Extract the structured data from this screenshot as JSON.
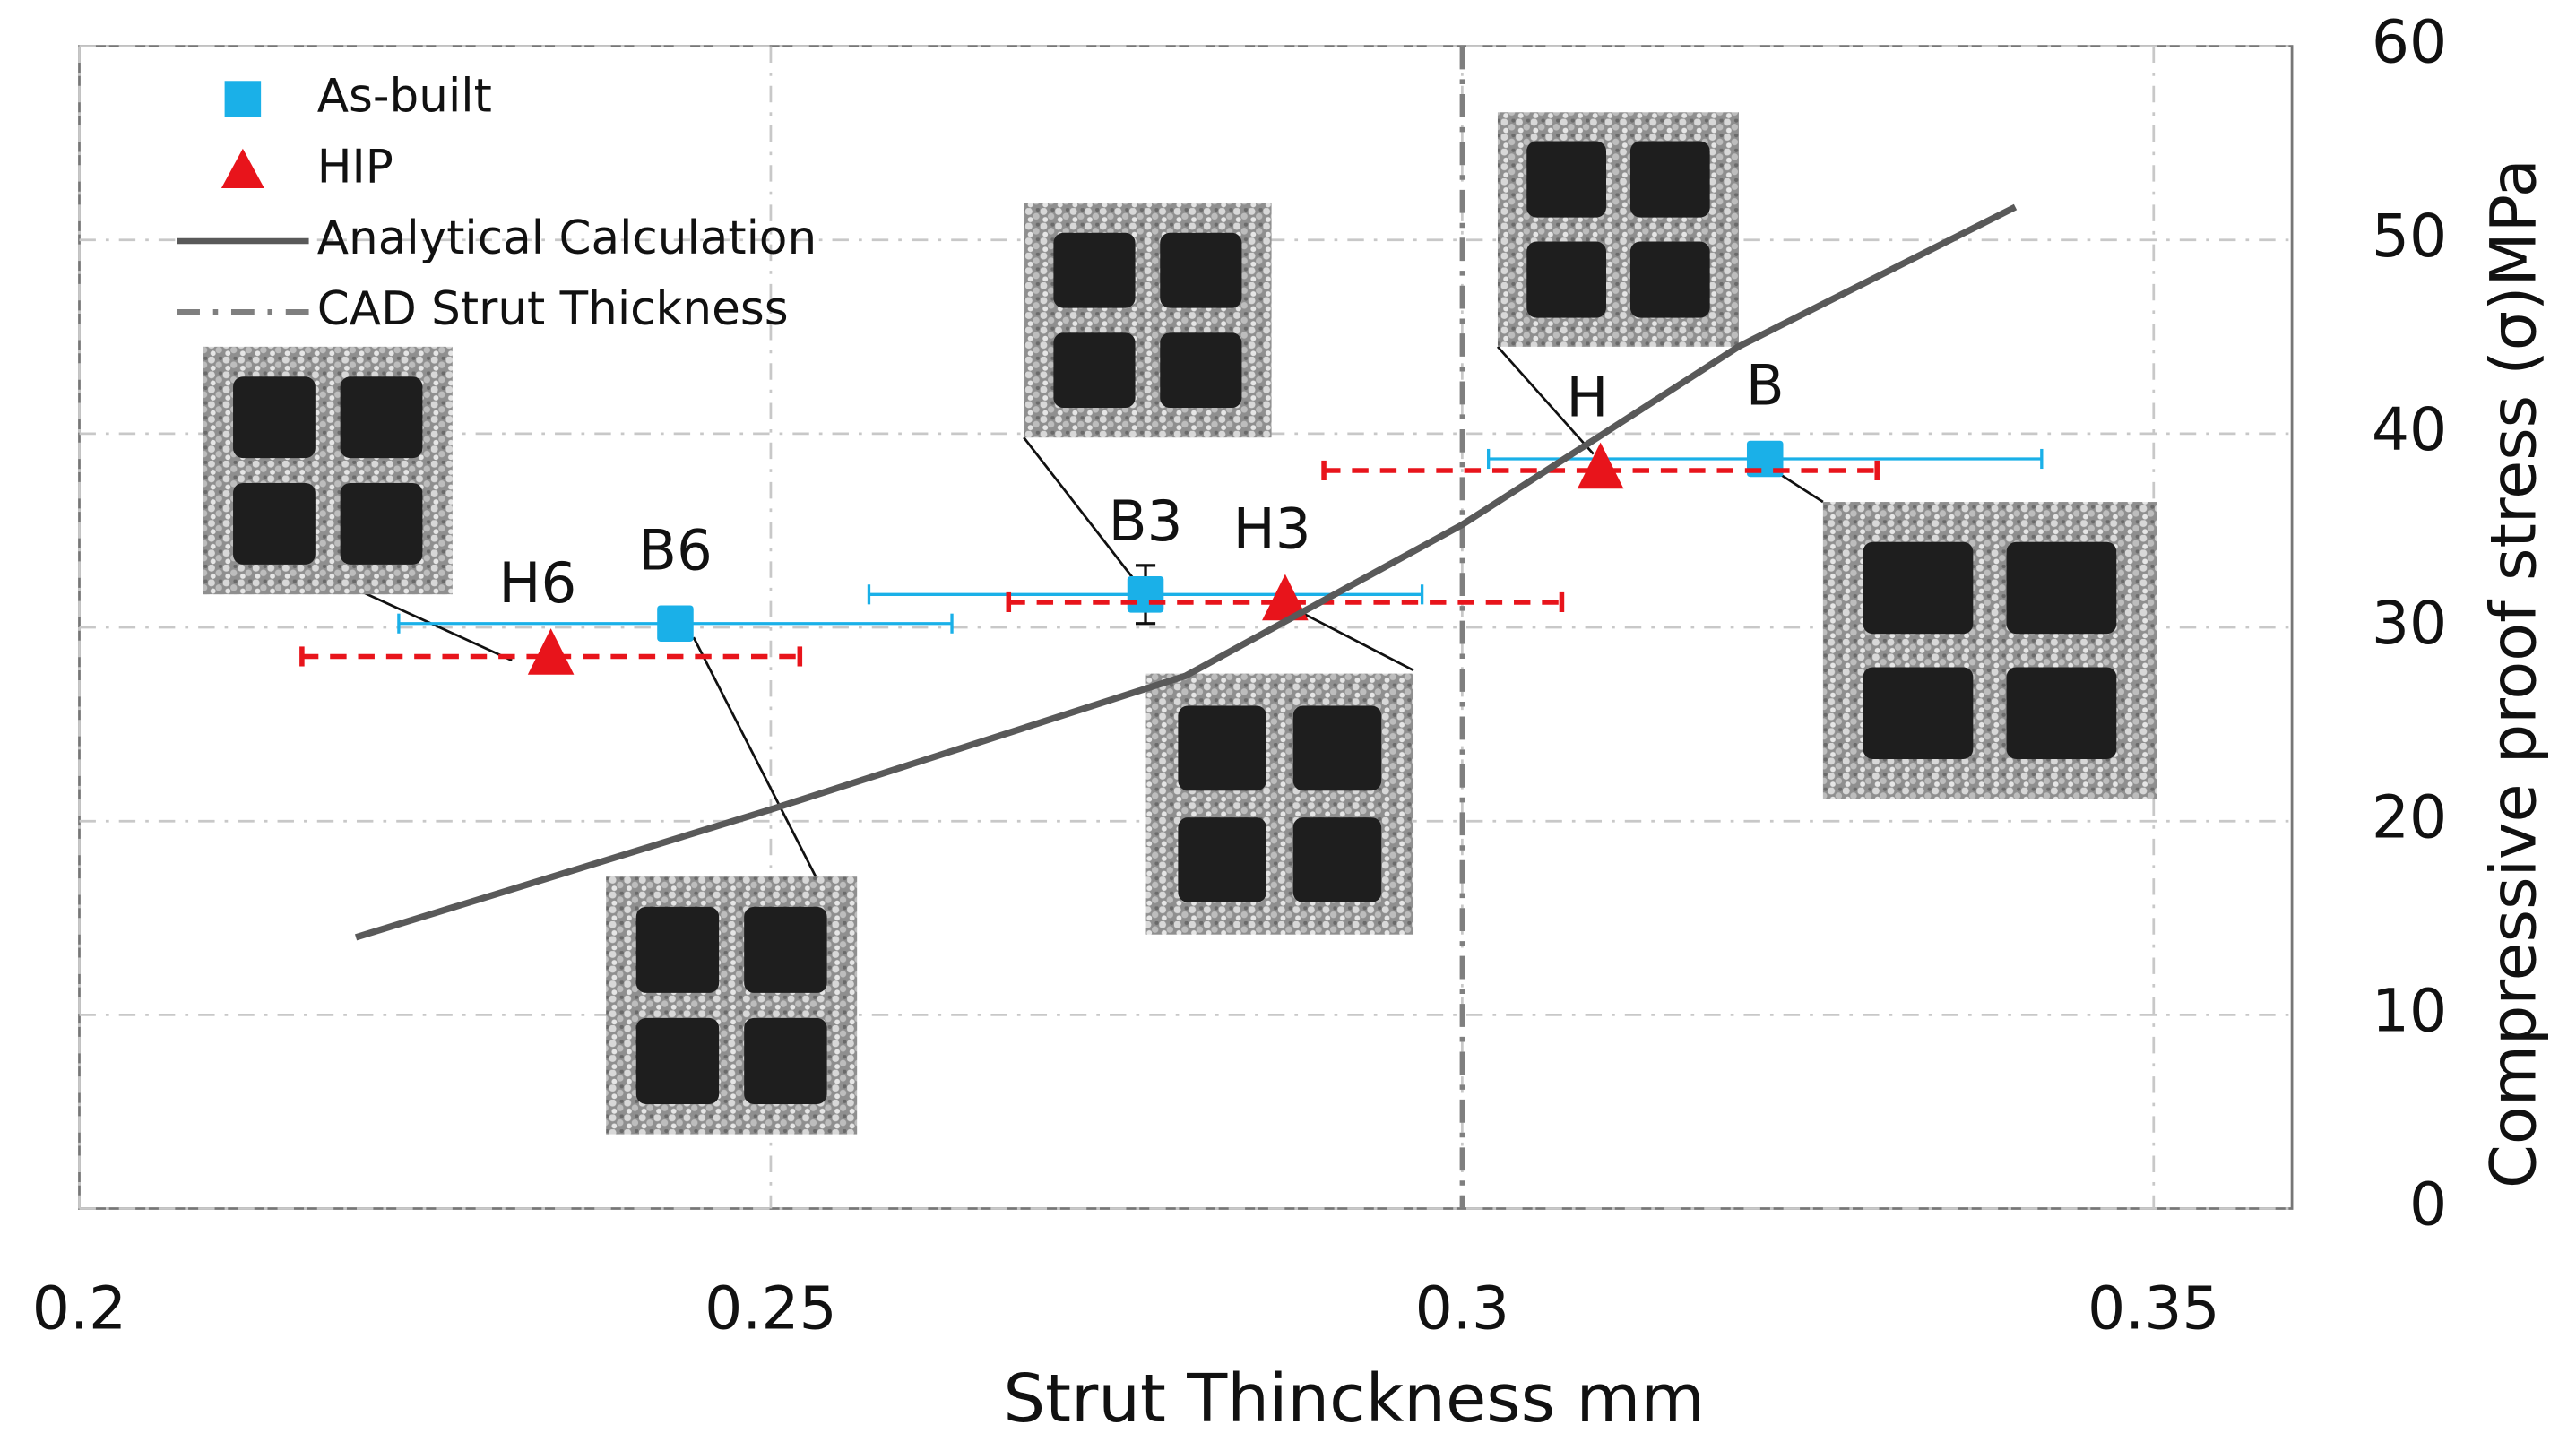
{
  "chart_data": {
    "type": "scatter",
    "x_label": "Strut Thinckness mm",
    "y_label": "Compressive proof stress (σ)MPa",
    "xlim": [
      0.2,
      0.36
    ],
    "ylim": [
      0,
      60
    ],
    "xticks": [
      0.2,
      0.25,
      0.3,
      0.35
    ],
    "yticks": [
      0,
      10,
      20,
      30,
      40,
      50,
      60
    ],
    "y_axis_side": "right",
    "grid": true,
    "legend": "upper left",
    "series": [
      {
        "name": "As-built",
        "marker": "square",
        "color": "#1ab0e8",
        "x": [
          0.2431,
          0.2771,
          0.3219
        ],
        "values": [
          30.2,
          31.7,
          38.7
        ],
        "xerr": [
          0.02,
          0.02,
          0.02
        ],
        "yerr": [
          null,
          1.5,
          null
        ],
        "labels": [
          "B6",
          "B3",
          "B"
        ]
      },
      {
        "name": "HIP",
        "marker": "triangle",
        "color": "#e8141b",
        "x": [
          0.2341,
          0.2872,
          0.31
        ],
        "values": [
          28.5,
          31.3,
          38.1
        ],
        "xerr": [
          0.018,
          0.02,
          0.02
        ],
        "yerr": [
          null,
          null,
          null
        ],
        "labels": [
          "H6",
          "H3",
          "H"
        ]
      },
      {
        "name": "Analytical Calculation",
        "marker": "line",
        "color": "#595959",
        "x": [
          0.22,
          0.25,
          0.28,
          0.3,
          0.32,
          0.34
        ],
        "values": [
          14,
          20.6,
          27.5,
          35.3,
          44.5,
          51.7
        ]
      }
    ],
    "reference_lines": [
      {
        "name": "CAD Strut Thickness",
        "x": 0.3,
        "color": "#7f7f7f"
      }
    ]
  }
}
